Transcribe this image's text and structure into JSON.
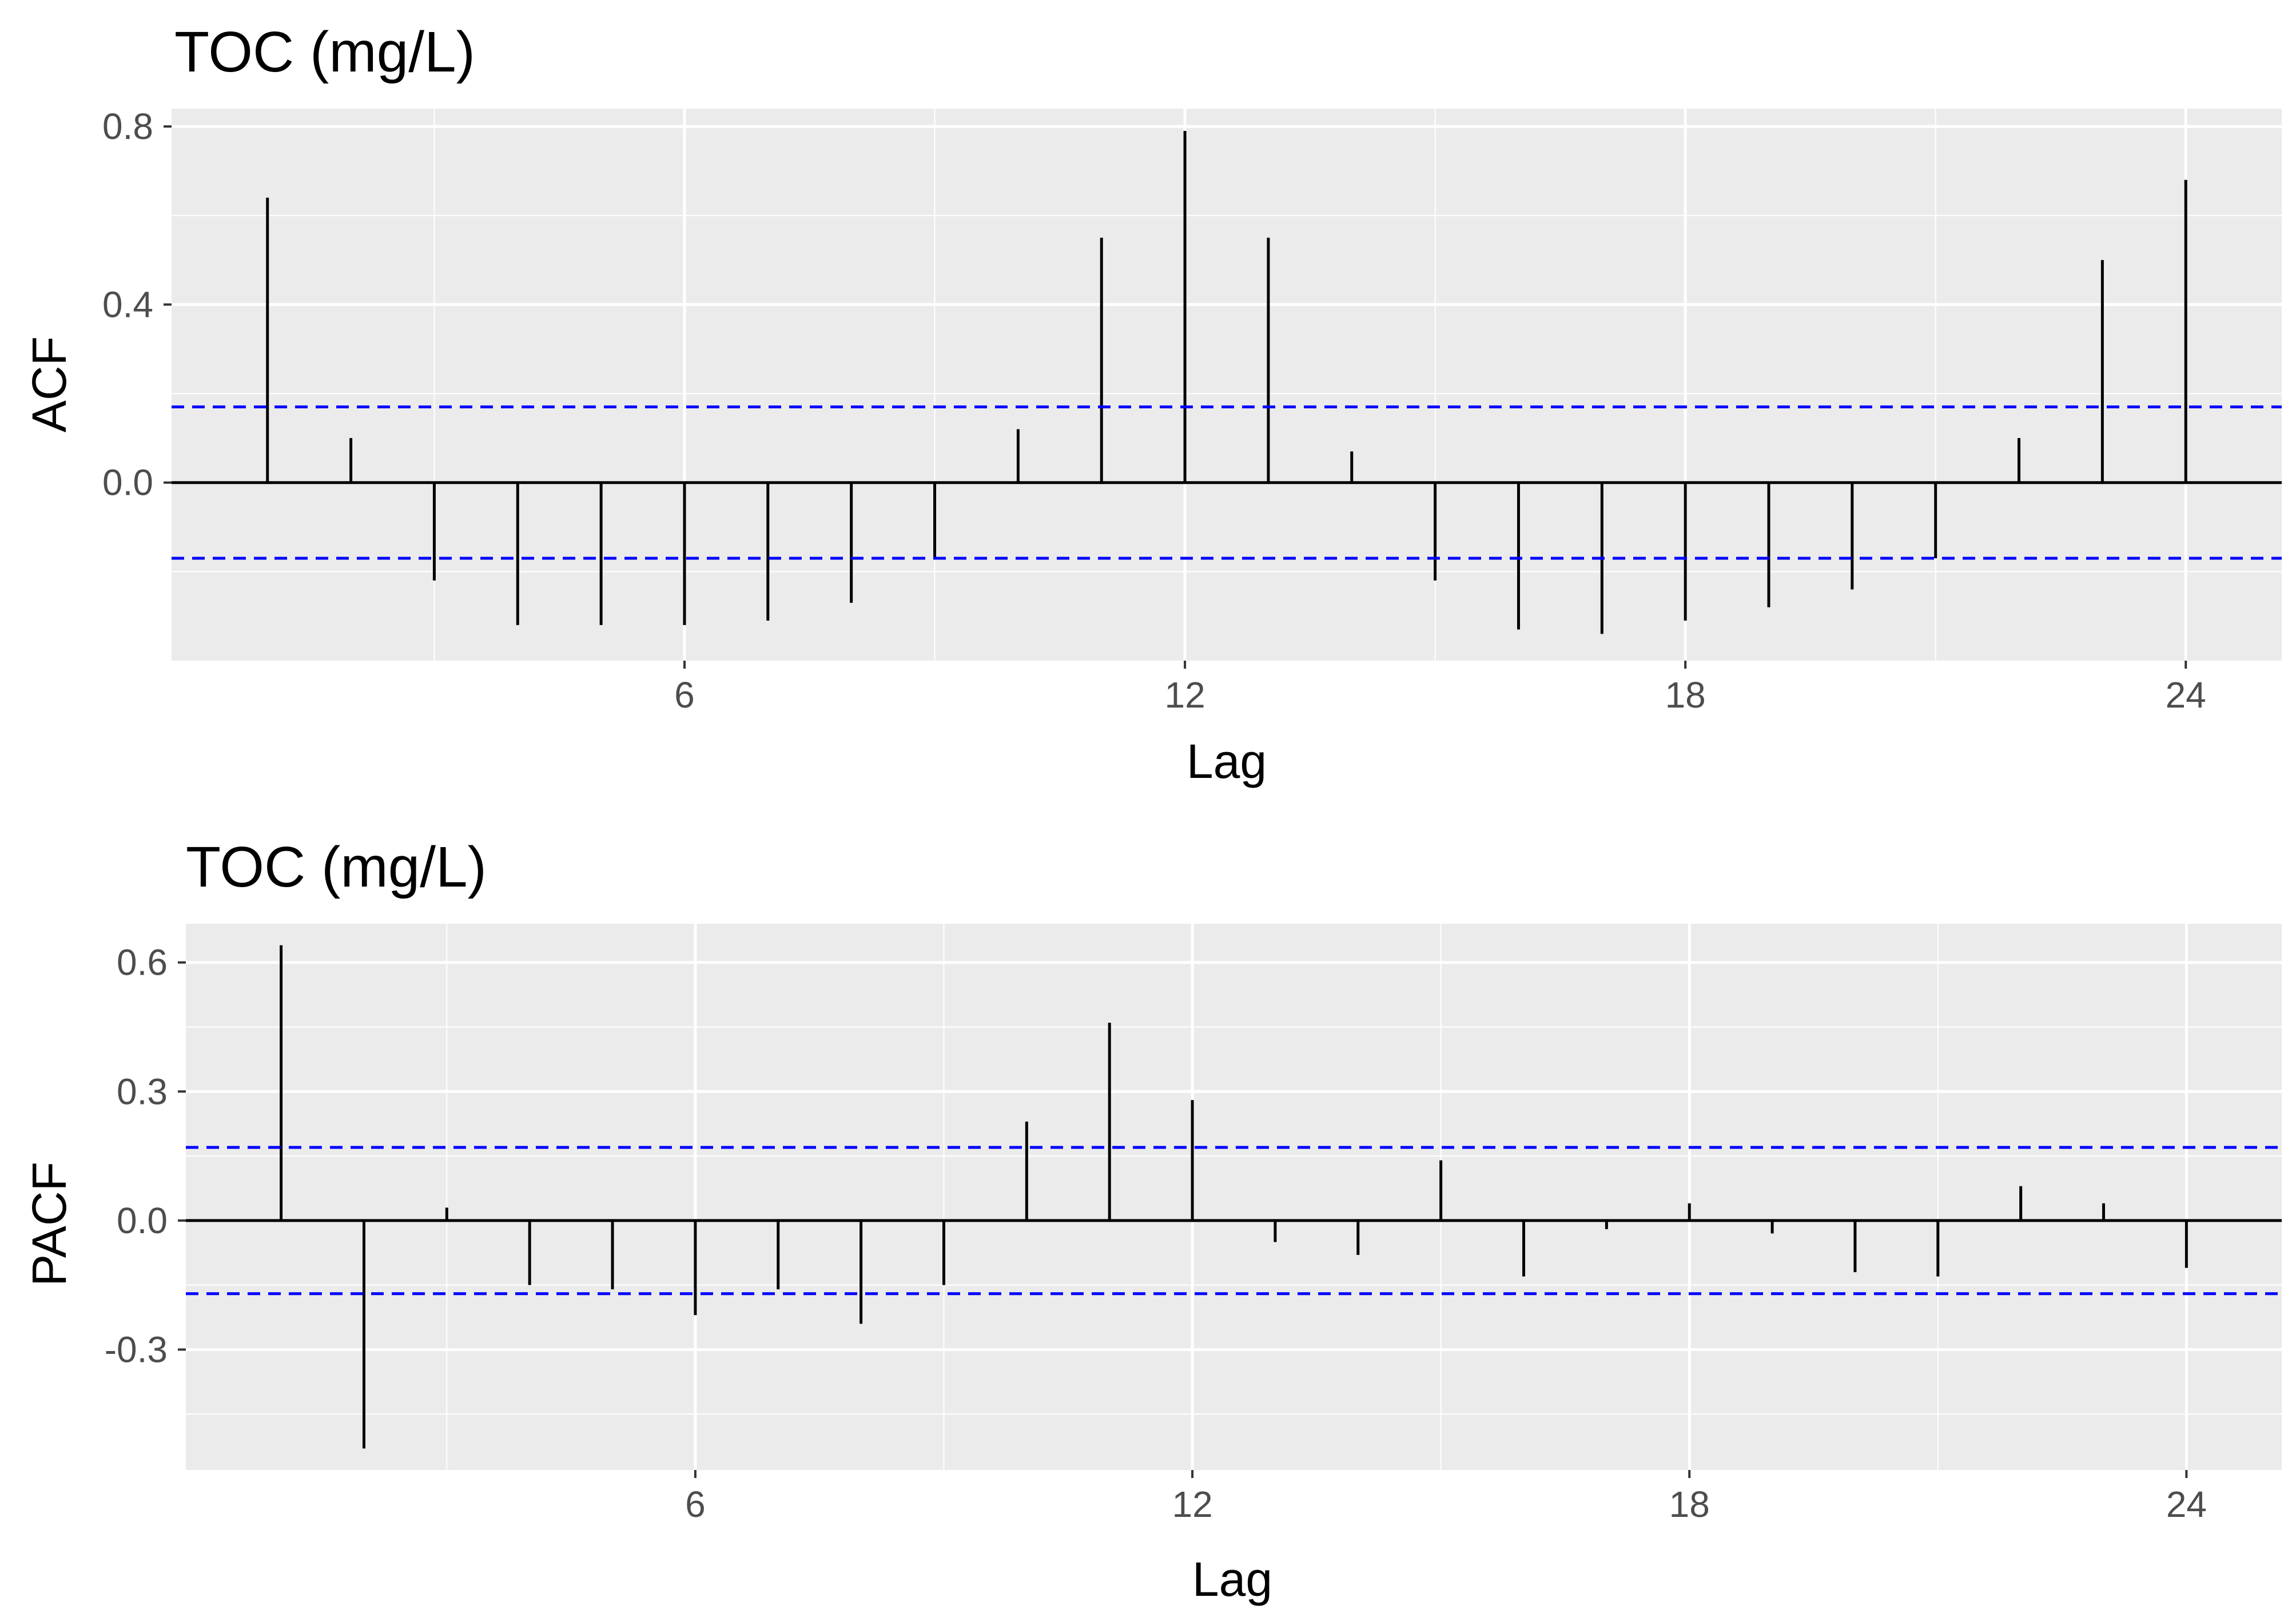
{
  "colors": {
    "panel_background": "#EBEBEB",
    "grid": "#FFFFFF",
    "bar": "#000000",
    "confidence_line": "#0000FF",
    "tick_text": "#4D4D4D"
  },
  "chart_data": [
    {
      "type": "bar",
      "title": "TOC (mg/L)",
      "xlabel": "Lag",
      "ylabel": "ACF",
      "xlim": [
        -0.15,
        25.15
      ],
      "ylim": [
        -0.4,
        0.84
      ],
      "x_ticks": [
        6,
        12,
        18,
        24
      ],
      "y_ticks": [
        0.0,
        0.4,
        0.8
      ],
      "y_tick_labels": [
        "0.0",
        "0.4",
        "0.8"
      ],
      "grid": true,
      "confidence_interval": [
        0.17,
        -0.17
      ],
      "lags": [
        1,
        2,
        3,
        4,
        5,
        6,
        7,
        8,
        9,
        10,
        11,
        12,
        13,
        14,
        15,
        16,
        17,
        18,
        19,
        20,
        21,
        22,
        23,
        24
      ],
      "values": [
        0.64,
        0.1,
        -0.22,
        -0.32,
        -0.32,
        -0.32,
        -0.31,
        -0.27,
        -0.17,
        0.12,
        0.55,
        0.79,
        0.55,
        0.07,
        -0.22,
        -0.33,
        -0.34,
        -0.31,
        -0.28,
        -0.24,
        -0.17,
        0.1,
        0.5,
        0.68
      ]
    },
    {
      "type": "bar",
      "title": "TOC (mg/L)",
      "xlabel": "Lag",
      "ylabel": "PACF",
      "xlim": [
        -0.15,
        25.15
      ],
      "ylim": [
        -0.58,
        0.69
      ],
      "x_ticks": [
        6,
        12,
        18,
        24
      ],
      "y_ticks": [
        -0.3,
        0.0,
        0.3,
        0.6
      ],
      "y_tick_labels": [
        "-0.3",
        "0.0",
        "0.3",
        "0.6"
      ],
      "grid": true,
      "confidence_interval": [
        0.17,
        -0.17
      ],
      "lags": [
        1,
        2,
        3,
        4,
        5,
        6,
        7,
        8,
        9,
        10,
        11,
        12,
        13,
        14,
        15,
        16,
        17,
        18,
        19,
        20,
        21,
        22,
        23,
        24
      ],
      "values": [
        0.64,
        -0.53,
        0.03,
        -0.15,
        -0.16,
        -0.22,
        -0.16,
        -0.24,
        -0.15,
        0.23,
        0.46,
        0.28,
        -0.05,
        -0.08,
        0.14,
        -0.13,
        -0.02,
        0.04,
        -0.03,
        -0.12,
        -0.13,
        0.08,
        0.04,
        -0.11
      ]
    }
  ]
}
